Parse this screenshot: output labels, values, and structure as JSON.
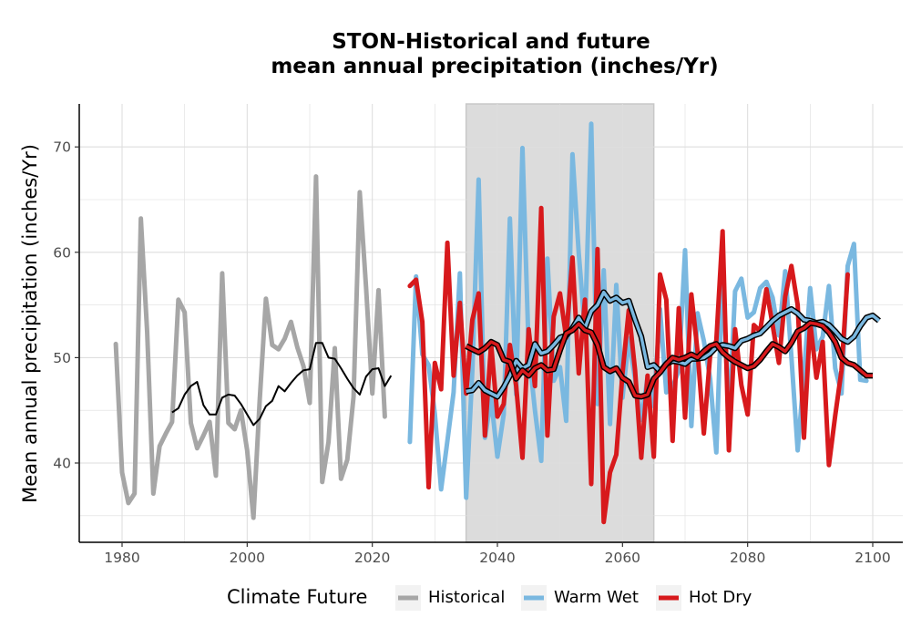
{
  "chart_data": {
    "type": "line",
    "title": [
      "STON-Historical and future",
      "mean annual precipitation (inches/Yr)"
    ],
    "xlabel": "",
    "ylabel": "Mean annual precipitation (inches/Yr)",
    "xlim": [
      1973.5,
      2105
    ],
    "ylim": [
      32.5,
      74
    ],
    "x_ticks": [
      1980,
      2000,
      2020,
      2040,
      2060,
      2080,
      2100
    ],
    "y_ticks": [
      40,
      50,
      60,
      70
    ],
    "grid": true,
    "shaded_period": [
      2035,
      2065
    ],
    "legend": {
      "title": "Climate Future",
      "position": "bottom",
      "entries": [
        {
          "label": "Historical",
          "color": "#a6a6a6"
        },
        {
          "label": "Warm Wet",
          "color": "#7ab8e0"
        },
        {
          "label": "Hot Dry",
          "color": "#d7191c"
        }
      ]
    },
    "series": [
      {
        "name": "Historical",
        "color": "#a6a6a6",
        "x_start": 1979,
        "values": [
          51.3,
          39.1,
          36.2,
          37.1,
          63.2,
          52.5,
          37.1,
          41.6,
          42.8,
          43.9,
          55.5,
          54.3,
          43.8,
          41.4,
          42.6,
          43.9,
          38.8,
          58.0,
          43.8,
          43.2,
          45.0,
          41.2,
          34.8,
          46.0,
          55.6,
          51.2,
          50.8,
          51.8,
          53.4,
          51.0,
          49.2,
          45.7,
          67.2,
          38.2,
          42.0,
          50.9,
          38.5,
          40.3,
          46.3,
          65.7,
          56.7,
          46.6,
          56.4,
          44.4
        ],
        "smooth_start": 1988,
        "smooth_values": [
          44.8,
          45.2,
          46.5,
          47.3,
          47.7,
          45.5,
          44.6,
          44.6,
          46.2,
          46.5,
          46.4,
          45.6,
          44.6,
          43.6,
          44.2,
          45.4,
          45.9,
          47.3,
          46.8,
          47.6,
          48.3,
          48.8,
          48.9,
          51.4,
          51.4,
          50.0,
          49.9,
          49.0,
          48.0,
          47.1,
          46.5,
          48.2,
          48.9,
          49.0,
          47.3,
          48.3
        ]
      },
      {
        "name": "Warm Wet",
        "color": "#7ab8e0",
        "x_start": 2026,
        "values": [
          42.0,
          57.7,
          50.3,
          49.3,
          44.7,
          37.5,
          42.1,
          46.7,
          58.0,
          36.7,
          48.8,
          66.9,
          42.4,
          46.1,
          40.6,
          44.6,
          63.2,
          46.5,
          69.9,
          50.7,
          45.0,
          40.2,
          59.4,
          47.8,
          49.1,
          44.0,
          69.3,
          59.9,
          52.6,
          72.2,
          45.6,
          58.3,
          43.7,
          56.9,
          46.2,
          51.8,
          48.0,
          44.1,
          48.1,
          45.4,
          54.6,
          46.7,
          47.2,
          48.8,
          60.2,
          43.5,
          54.2,
          51.6,
          48.0,
          41.0,
          58.2,
          43.9,
          56.3,
          57.5,
          53.8,
          54.3,
          56.6,
          57.2,
          55.7,
          52.1,
          58.2,
          50.1,
          41.2,
          48.4,
          56.6,
          50.8,
          52.0,
          56.8,
          49.0,
          46.6,
          58.7,
          60.8,
          47.9,
          47.8
        ],
        "smooth_start": 2035,
        "smooth_values": [
          46.8,
          46.9,
          47.6,
          46.9,
          46.6,
          46.3,
          47.2,
          48.3,
          49.7,
          49.0,
          49.3,
          51.3,
          50.4,
          50.6,
          51.2,
          51.9,
          52.1,
          52.8,
          53.8,
          52.8,
          54.4,
          55.0,
          56.2,
          55.4,
          55.7,
          55.2,
          55.4,
          53.6,
          52.0,
          49.1,
          49.3,
          48.7,
          49.4,
          49.7,
          49.6,
          49.4,
          49.9,
          49.9,
          50.0,
          50.4,
          51.0,
          51.2,
          51.1,
          50.9,
          51.6,
          51.8,
          52.1,
          52.3,
          52.9,
          53.5,
          54.0,
          54.3,
          54.6,
          54.2,
          53.6,
          53.5,
          53.3,
          53.4,
          53.1,
          52.5,
          51.8,
          51.5,
          52.0,
          53.0,
          53.8,
          54.0,
          53.5
        ]
      },
      {
        "name": "Hot Dry",
        "color": "#d7191c",
        "x_start": 2026,
        "values": [
          56.8,
          57.4,
          53.4,
          37.7,
          49.5,
          47.0,
          60.9,
          48.3,
          55.2,
          46.6,
          53.6,
          56.1,
          42.6,
          51.3,
          44.4,
          45.6,
          51.2,
          47.3,
          40.5,
          52.7,
          47.3,
          64.2,
          42.6,
          53.9,
          56.1,
          51.9,
          59.5,
          48.5,
          55.5,
          38.0,
          60.3,
          34.4,
          39.1,
          40.8,
          48.5,
          54.5,
          48.8,
          40.5,
          48.3,
          40.6,
          57.9,
          55.5,
          42.1,
          54.7,
          44.3,
          56.0,
          50.6,
          42.8,
          50.2,
          51.6,
          62.0,
          41.2,
          52.7,
          47.4,
          44.6,
          53.1,
          52.5,
          56.5,
          53.1,
          49.5,
          55.8,
          58.7,
          55.0,
          42.4,
          53.4,
          48.1,
          51.5,
          39.8,
          44.5,
          48.8,
          57.9
        ],
        "smooth_start": 2035,
        "smooth_values": [
          51.1,
          50.8,
          50.5,
          50.9,
          51.5,
          51.2,
          49.8,
          49.6,
          48.0,
          48.8,
          48.3,
          49.0,
          49.3,
          48.8,
          48.9,
          50.7,
          52.3,
          52.6,
          53.2,
          52.6,
          52.4,
          51.2,
          49.1,
          48.7,
          49.0,
          48.1,
          47.7,
          46.4,
          46.3,
          46.5,
          48.0,
          48.6,
          49.4,
          50.0,
          49.8,
          50.0,
          50.3,
          50.0,
          50.6,
          51.1,
          51.3,
          50.5,
          50.0,
          49.6,
          49.3,
          49.0,
          49.2,
          49.8,
          50.6,
          51.3,
          51.0,
          50.6,
          51.4,
          52.5,
          52.8,
          53.3,
          53.2,
          53.0,
          52.4,
          51.5,
          50.0,
          49.5,
          49.3,
          48.8,
          48.3,
          48.3
        ]
      }
    ]
  }
}
